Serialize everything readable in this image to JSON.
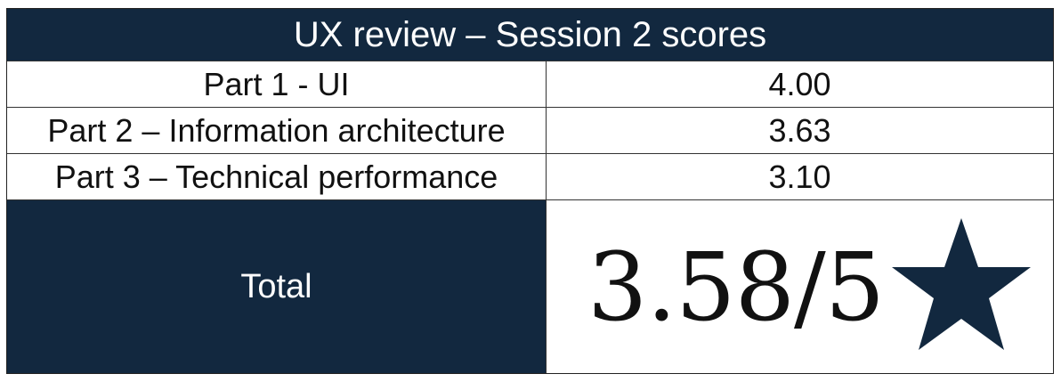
{
  "table": {
    "title": "UX review – Session 2 scores",
    "rows": [
      {
        "label": "Part 1 - UI",
        "value": "4.00"
      },
      {
        "label": "Part 2 – Information architecture",
        "value": "3.63"
      },
      {
        "label": "Part 3 – Technical performance",
        "value": "3.10"
      }
    ],
    "total": {
      "label": "Total",
      "value": "3.58/5",
      "icon": "star-icon"
    }
  },
  "colors": {
    "header_background": "#12283f",
    "header_text": "#ffffff",
    "star": "#12283f",
    "body_text": "#111111"
  }
}
